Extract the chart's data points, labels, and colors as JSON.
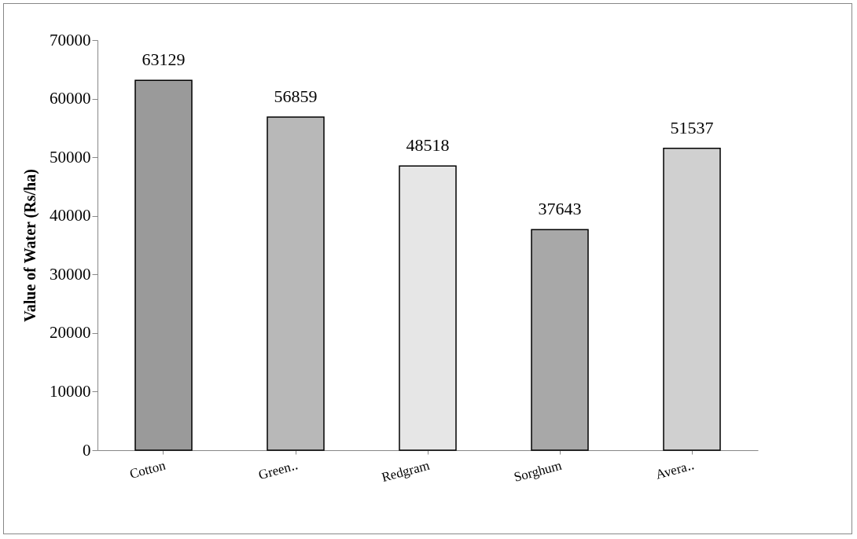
{
  "chart_data": {
    "type": "bar",
    "ylabel": "Value of Water (Rs/ha)",
    "categories": [
      "Cotton",
      "Green‥",
      "Redgram",
      "Sorghum",
      "Avera‥"
    ],
    "values": [
      63129,
      56859,
      48518,
      37643,
      51537
    ],
    "colors": [
      "#9a9a9a",
      "#b8b8b8",
      "#e6e6e6",
      "#a8a8a8",
      "#d0d0d0"
    ],
    "ylim": [
      0,
      70000
    ],
    "yticks": [
      0,
      10000,
      20000,
      30000,
      40000,
      50000,
      60000,
      70000
    ],
    "grid": false,
    "data_labels": true
  }
}
